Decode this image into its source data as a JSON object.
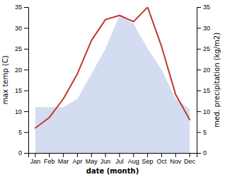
{
  "chart_data": {
    "type": "line",
    "xlabel": "date (month)",
    "ylabel": "max temp (C)",
    "y2label": "med. precipitation (kg/m2)",
    "categories": [
      "Jan",
      "Feb",
      "Mar",
      "Apr",
      "May",
      "Jun",
      "Jul",
      "Aug",
      "Sep",
      "Oct",
      "Nov",
      "Dec"
    ],
    "series": [
      {
        "type": "area",
        "axis": "y2",
        "color": "#b8c4e8",
        "values": [
          11,
          11,
          11,
          13,
          19,
          25,
          33,
          31,
          25,
          20,
          13,
          10.5
        ]
      },
      {
        "type": "line",
        "color": "#c0392b",
        "values": [
          6,
          8.5,
          13,
          19,
          27,
          32,
          33,
          31.5,
          35,
          25.5,
          14,
          8
        ]
      }
    ],
    "ylim": [
      0,
      35
    ],
    "yticks": [
      0,
      5,
      10,
      15,
      20,
      25,
      30,
      35
    ],
    "y2lim": [
      0,
      35
    ],
    "y2ticks": [
      0,
      5,
      10,
      15,
      20,
      25,
      30,
      35
    ],
    "grid": false
  }
}
